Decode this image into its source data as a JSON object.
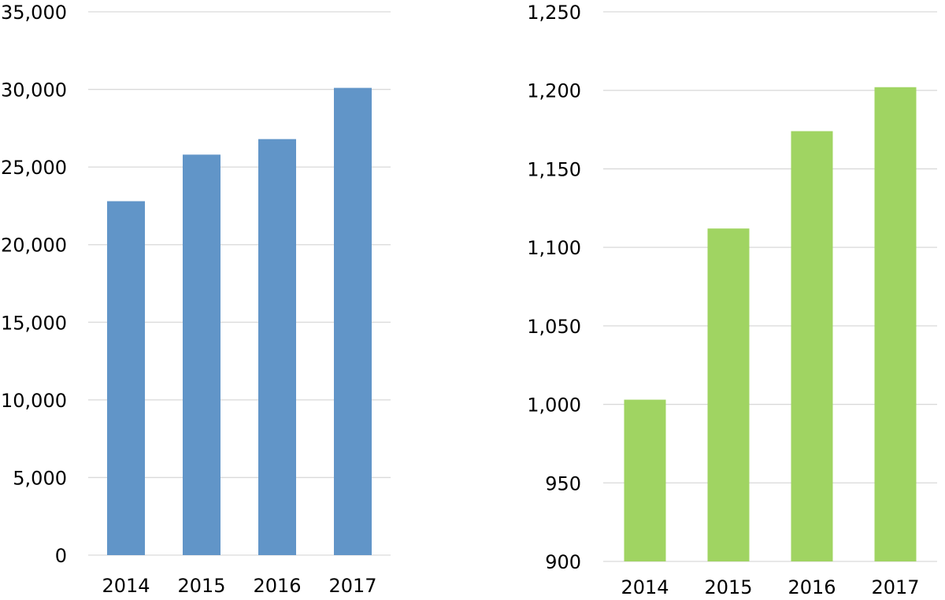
{
  "chart_data": [
    {
      "type": "bar",
      "title": "",
      "xlabel": "",
      "ylabel": "",
      "categories": [
        "2014",
        "2015",
        "2016",
        "2017"
      ],
      "values": [
        22800,
        25800,
        26800,
        30100
      ],
      "ylim": [
        0,
        35000
      ],
      "yticks": [
        0,
        5000,
        10000,
        15000,
        20000,
        25000,
        30000,
        35000
      ],
      "ytick_labels": [
        "0",
        "5,000",
        "10,000",
        "15,000",
        "20,000",
        "25,000",
        "30,000",
        "35,000"
      ],
      "grid": true,
      "legend": "none",
      "color": "#6195c8"
    },
    {
      "type": "bar",
      "title": "",
      "xlabel": "",
      "ylabel": "",
      "categories": [
        "2014",
        "2015",
        "2016",
        "2017"
      ],
      "values": [
        1003,
        1112,
        1174,
        1202
      ],
      "ylim": [
        900,
        1250
      ],
      "yticks": [
        900,
        950,
        1000,
        1050,
        1100,
        1150,
        1200,
        1250
      ],
      "ytick_labels": [
        "900",
        "950",
        "1,000",
        "1,050",
        "1,100",
        "1,150",
        "1,200",
        "1,250"
      ],
      "grid": true,
      "legend": "none",
      "color": "#a0d462"
    }
  ]
}
